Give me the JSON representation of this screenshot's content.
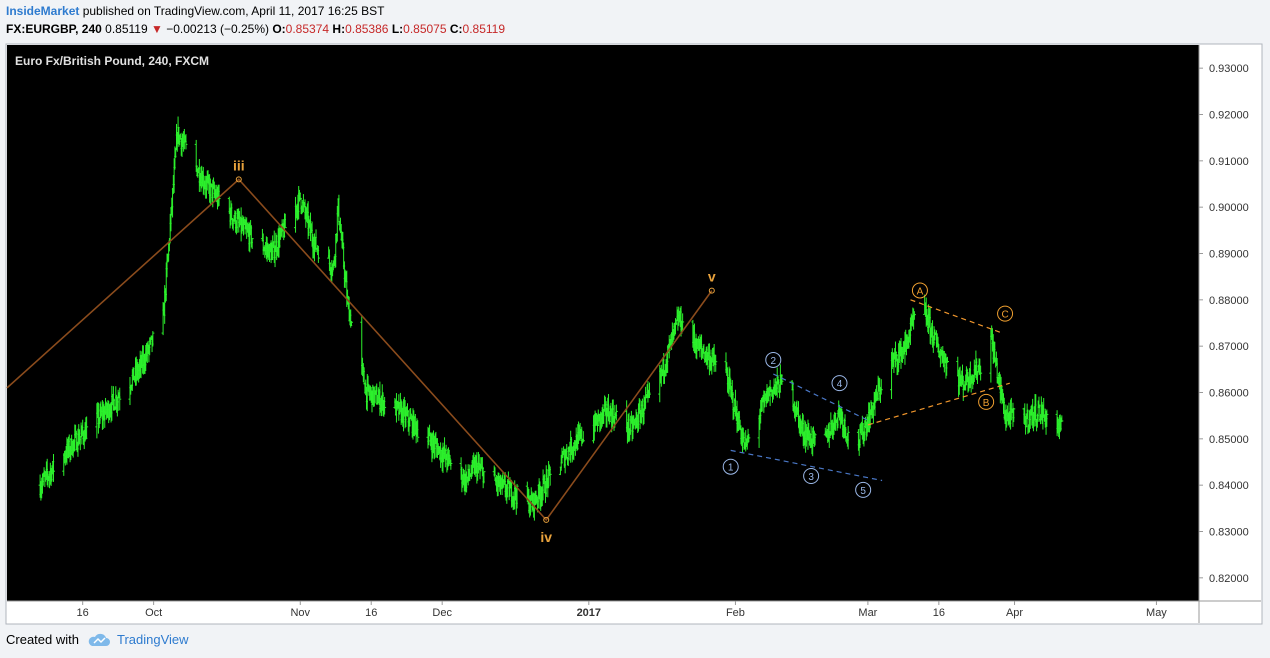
{
  "header": {
    "publisher": "InsideMarket",
    "published_text": "published on TradingView.com, April 11, 2017 16:25 BST",
    "symbol": "FX:EURGBP, 240",
    "last": "0.85119",
    "change_arrow": "▼",
    "change": "−0.00213 (−0.25%)",
    "o_label": "O:",
    "o_value": "0.85374",
    "h_label": "H:",
    "h_value": "0.85386",
    "l_label": "L:",
    "l_value": "0.85075",
    "c_label": "C:",
    "c_value": "0.85119"
  },
  "chart_data": {
    "type": "ohlc",
    "title": "Euro Fx/British Pound, 240, FXCM",
    "xlabel": "",
    "ylabel": "",
    "ylim": [
      0.815,
      0.935
    ],
    "grid": false,
    "y_ticks": [
      "0.93000",
      "0.92000",
      "0.91000",
      "0.90000",
      "0.89000",
      "0.88000",
      "0.87000",
      "0.86000",
      "0.85000",
      "0.84000",
      "0.83000",
      "0.82000"
    ],
    "x_ticks": [
      "16",
      "Oct",
      "Nov",
      "16",
      "Dec",
      "2017",
      "Feb",
      "Mar",
      "16",
      "Apr",
      "May"
    ],
    "price_path": [
      [
        "2016-09-07",
        0.84
      ],
      [
        "2016-09-14",
        0.849
      ],
      [
        "2016-09-21",
        0.856
      ],
      [
        "2016-09-28",
        0.865
      ],
      [
        "2016-10-03",
        0.876
      ],
      [
        "2016-10-06",
        0.916
      ],
      [
        "2016-10-12",
        0.905
      ],
      [
        "2016-10-20",
        0.895
      ],
      [
        "2016-10-26",
        0.89
      ],
      [
        "2016-11-01",
        0.902
      ],
      [
        "2016-11-04",
        0.892
      ],
      [
        "2016-11-08",
        0.887
      ],
      [
        "2016-11-09",
        0.9
      ],
      [
        "2016-11-11",
        0.879
      ],
      [
        "2016-11-15",
        0.86
      ],
      [
        "2016-11-22",
        0.856
      ],
      [
        "2016-11-30",
        0.848
      ],
      [
        "2016-12-06",
        0.841
      ],
      [
        "2016-12-08",
        0.844
      ],
      [
        "2016-12-13",
        0.84
      ],
      [
        "2016-12-20",
        0.836
      ],
      [
        "2016-12-28",
        0.848
      ],
      [
        "2017-01-05",
        0.856
      ],
      [
        "2017-01-10",
        0.852
      ],
      [
        "2017-01-16",
        0.863
      ],
      [
        "2017-01-20",
        0.876
      ],
      [
        "2017-01-24",
        0.87
      ],
      [
        "2017-01-30",
        0.864
      ],
      [
        "2017-02-03",
        0.848
      ],
      [
        "2017-02-08",
        0.86
      ],
      [
        "2017-02-12",
        0.863
      ],
      [
        "2017-02-15",
        0.852
      ],
      [
        "2017-02-19",
        0.848
      ],
      [
        "2017-02-23",
        0.856
      ],
      [
        "2017-02-26",
        0.847
      ],
      [
        "2017-03-01",
        0.854
      ],
      [
        "2017-03-05",
        0.865
      ],
      [
        "2017-03-09",
        0.87
      ],
      [
        "2017-03-12",
        0.88
      ],
      [
        "2017-03-16",
        0.869
      ],
      [
        "2017-03-21",
        0.862
      ],
      [
        "2017-03-25",
        0.866
      ],
      [
        "2017-03-27",
        0.872
      ],
      [
        "2017-03-30",
        0.855
      ],
      [
        "2017-04-03",
        0.854
      ],
      [
        "2017-04-06",
        0.856
      ],
      [
        "2017-04-11",
        0.852
      ]
    ],
    "annotations": [
      {
        "label": "iii",
        "x": "2016-10-19",
        "y": 0.906,
        "color": "#e8a23c"
      },
      {
        "label": "iv",
        "x": "2016-12-23",
        "y": 0.8325,
        "color": "#e8a23c"
      },
      {
        "label": "v",
        "x": "2017-01-27",
        "y": 0.882,
        "color": "#e8a23c"
      },
      {
        "label": "1",
        "x": "2017-01-31",
        "y": 0.847,
        "color": "#9bb8e8"
      },
      {
        "label": "2",
        "x": "2017-02-09",
        "y": 0.864,
        "color": "#9bb8e8"
      },
      {
        "label": "3",
        "x": "2017-02-17",
        "y": 0.845,
        "color": "#9bb8e8"
      },
      {
        "label": "4",
        "x": "2017-02-23",
        "y": 0.859,
        "color": "#9bb8e8"
      },
      {
        "label": "5",
        "x": "2017-02-28",
        "y": 0.842,
        "color": "#9bb8e8"
      },
      {
        "label": "A",
        "x": "2017-03-12",
        "y": 0.879,
        "color": "#f0a030"
      },
      {
        "label": "B",
        "x": "2017-03-26",
        "y": 0.861,
        "color": "#f0a030"
      },
      {
        "label": "C",
        "x": "2017-03-30",
        "y": 0.874,
        "color": "#f0a030"
      }
    ],
    "wave_lines": [
      {
        "points": [
          [
            "2016-08-31",
            0.861
          ],
          [
            "2016-10-19",
            0.906
          ],
          [
            "2016-12-23",
            0.8325
          ],
          [
            "2017-01-27",
            0.882
          ]
        ],
        "color": "#8a4b1c",
        "dash": false
      },
      {
        "points": [
          [
            "2017-01-31",
            0.8475
          ],
          [
            "2017-03-04",
            0.841
          ]
        ],
        "color": "#4a78c8",
        "dash": true
      },
      {
        "points": [
          [
            "2017-02-09",
            0.864
          ],
          [
            "2017-03-01",
            0.854
          ]
        ],
        "color": "#4a78c8",
        "dash": true
      },
      {
        "points": [
          [
            "2017-03-01",
            0.853
          ],
          [
            "2017-03-31",
            0.862
          ]
        ],
        "color": "#f0962c",
        "dash": true
      },
      {
        "points": [
          [
            "2017-03-10",
            0.88
          ],
          [
            "2017-03-29",
            0.873
          ]
        ],
        "color": "#f0962c",
        "dash": true
      }
    ],
    "colors": {
      "bars": "#2cf02c",
      "background": "#000000",
      "axis_text": "#333333"
    }
  },
  "footer": {
    "created_with": "Created with",
    "tradingview": "TradingView"
  }
}
